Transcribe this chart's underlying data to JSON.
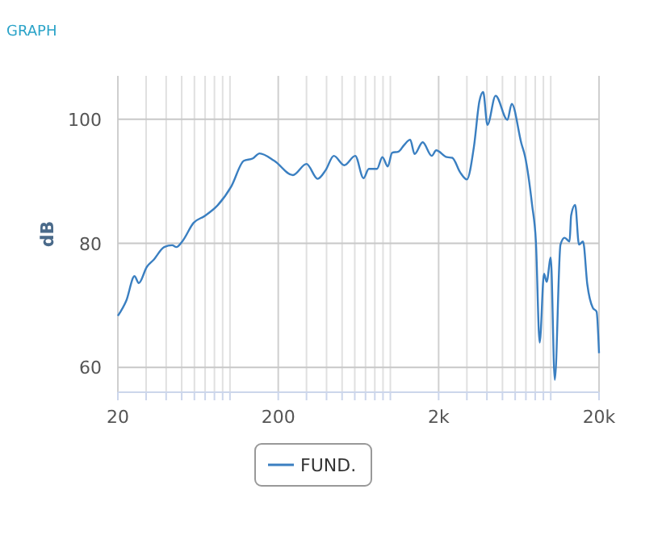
{
  "chart_data": {
    "type": "line",
    "title": "GRAPH",
    "ylabel": "dB",
    "log": "x",
    "grid": true,
    "legend": "bottom",
    "marker": "none",
    "xlim": [
      20,
      20000
    ],
    "ylim": [
      56,
      107
    ],
    "xticks": [
      20,
      {
        "value": 30,
        "label": null
      },
      {
        "value": 40,
        "label": null
      },
      {
        "value": 50,
        "label": null
      },
      {
        "value": 60,
        "label": null
      },
      {
        "value": 70,
        "label": null
      },
      {
        "value": 80,
        "label": null
      },
      {
        "value": 90,
        "label": null
      },
      {
        "value": 100,
        "label": null
      },
      200,
      {
        "value": 300,
        "label": null
      },
      {
        "value": 400,
        "label": null
      },
      {
        "value": 500,
        "label": null
      },
      {
        "value": 600,
        "label": null
      },
      {
        "value": 700,
        "label": null
      },
      {
        "value": 800,
        "label": null
      },
      {
        "value": 900,
        "label": null
      },
      {
        "value": 1000,
        "label": null
      },
      {
        "value": 2000,
        "label": "2k"
      },
      {
        "value": 3000,
        "label": null
      },
      {
        "value": 4000,
        "label": null
      },
      {
        "value": 5000,
        "label": null
      },
      {
        "value": 6000,
        "label": null
      },
      {
        "value": 7000,
        "label": null
      },
      {
        "value": 8000,
        "label": null
      },
      {
        "value": 9000,
        "label": null
      },
      {
        "value": 10000,
        "label": null
      },
      {
        "value": 20000,
        "label": "20k"
      }
    ],
    "yticks": [
      60,
      80,
      100
    ],
    "series": [
      {
        "name": "FUND.",
        "color": "#3a7fc1",
        "x": [
          20,
          22.6,
          25.4,
          27,
          30.3,
          33.3,
          38.9,
          43.6,
          46.3,
          50.7,
          59.3,
          69.4,
          84.2,
          102,
          122,
          139,
          153,
          189,
          247,
          300,
          352,
          395,
          444,
          516,
          604,
          680,
          734,
          825,
          892,
          964,
          1025,
          1125,
          1214,
          1330,
          1416,
          1590,
          1812,
          1930,
          2250,
          2430,
          2730,
          3000,
          3320,
          3590,
          3790,
          4030,
          4530,
          5370,
          5710,
          6560,
          6930,
          7650,
          8080,
          8530,
          9080,
          9430,
          10000,
          10600,
          11500,
          12200,
          13100,
          13400,
          14200,
          15000,
          15900,
          16900,
          18300,
          19300,
          20000
        ],
        "values": [
          68.3,
          70.8,
          74.7,
          73.6,
          76.2,
          77.3,
          79.4,
          79.7,
          79.4,
          80.4,
          83.3,
          84.4,
          86.2,
          89.2,
          93.3,
          93.7,
          94.5,
          93.3,
          91,
          92.8,
          90.4,
          91.8,
          94.1,
          92.6,
          94.1,
          90.5,
          92,
          92,
          93.9,
          92.4,
          94.6,
          94.8,
          95.8,
          96.7,
          94.4,
          96.3,
          94.1,
          95,
          93.9,
          93.8,
          91.4,
          90.3,
          95.6,
          102.9,
          104.4,
          99.1,
          103.8,
          99.9,
          102.5,
          96.1,
          93.9,
          86.2,
          80.3,
          64,
          75.1,
          73.8,
          77.7,
          58,
          79.8,
          80.9,
          80.3,
          84.5,
          86.2,
          79.8,
          80.3,
          73.4,
          69.6,
          69,
          62.3
        ]
      }
    ]
  }
}
